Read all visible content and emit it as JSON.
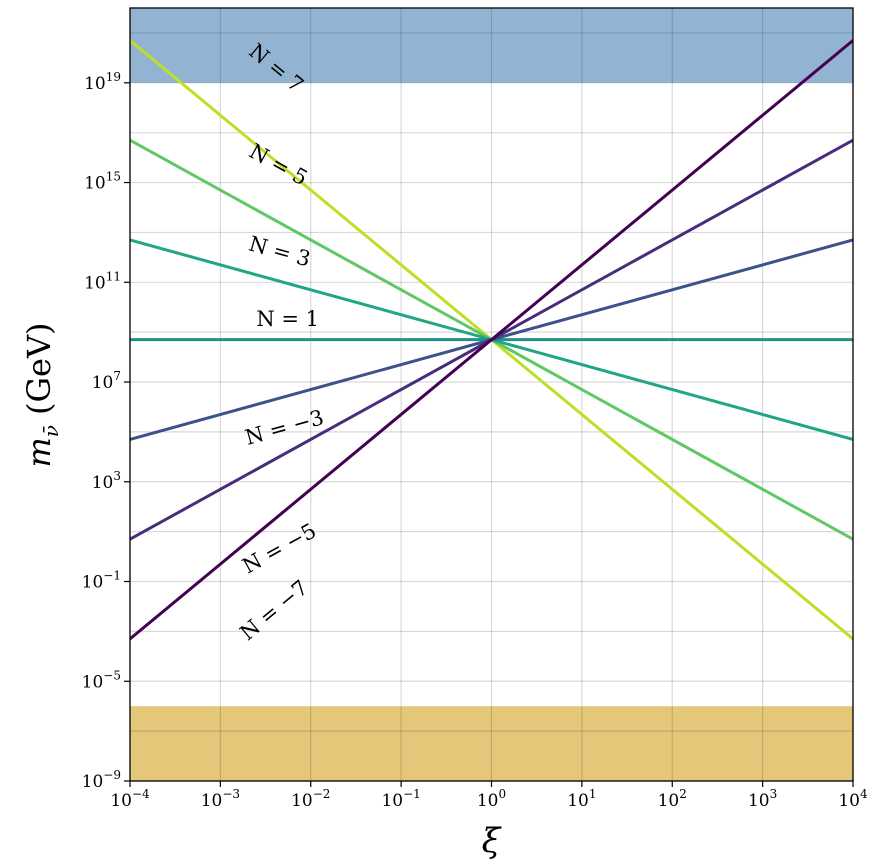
{
  "chart_data": {
    "type": "line",
    "title": "",
    "xlabel": "ξ",
    "ylabel_main": "m",
    "ylabel_sub": "ν̄",
    "ylabel_unit": "(GeV)",
    "x_scale": "log",
    "y_scale": "log",
    "xlim": [
      0.0001,
      10000
    ],
    "ylim": [
      1e-09,
      1e+22
    ],
    "grid": true,
    "x_ticks": [
      {
        "base": "10",
        "exp": "−4",
        "value": 0.0001
      },
      {
        "base": "10",
        "exp": "−3",
        "value": 0.001
      },
      {
        "base": "10",
        "exp": "−2",
        "value": 0.01
      },
      {
        "base": "10",
        "exp": "−1",
        "value": 0.1
      },
      {
        "base": "10",
        "exp": "0",
        "value": 1
      },
      {
        "base": "10",
        "exp": "1",
        "value": 10
      },
      {
        "base": "10",
        "exp": "2",
        "value": 100
      },
      {
        "base": "10",
        "exp": "3",
        "value": 1000
      },
      {
        "base": "10",
        "exp": "4",
        "value": 10000
      }
    ],
    "y_ticks": [
      {
        "base": "10",
        "exp": "−9",
        "value": 1e-09
      },
      {
        "base": "10",
        "exp": "−5",
        "value": 1e-05
      },
      {
        "base": "10",
        "exp": "−1",
        "value": 0.1
      },
      {
        "base": "10",
        "exp": "3",
        "value": 1000
      },
      {
        "base": "10",
        "exp": "7",
        "value": 10000000.0
      },
      {
        "base": "10",
        "exp": "11",
        "value": 100000000000.0
      },
      {
        "base": "10",
        "exp": "15",
        "value": 1000000000000000.0
      },
      {
        "base": "10",
        "exp": "19",
        "value": 1e+19
      }
    ],
    "y_grid_exponents": [
      -9,
      -7,
      -5,
      -3,
      -1,
      1,
      3,
      5,
      7,
      9,
      11,
      13,
      15,
      17,
      19,
      21
    ],
    "bands": [
      {
        "y_from": 1e+19,
        "y_to": 1e+22,
        "color": "#92b4d2"
      },
      {
        "y_from": 1e-09,
        "y_to": 1e-06,
        "color": "#e5c77a"
      }
    ],
    "pivot": {
      "x": 1,
      "y": 500000000.0
    },
    "series": [
      {
        "name": "N = 7",
        "slope": -3,
        "color": "#bddf26",
        "label_x": 0.002,
        "label_y": 1.5e+20
      },
      {
        "name": "N = 5",
        "slope": -2,
        "color": "#5ec962",
        "label_x": 0.002,
        "label_y": 1.2e+16
      },
      {
        "name": "N = 3",
        "slope": -1,
        "color": "#21a685",
        "label_x": 0.002,
        "label_y": 2000000000000.0
      },
      {
        "name": "N = 1",
        "slope": 0,
        "color": "#21918c",
        "label_x": 0.0025,
        "label_y": 1800000000.0
      },
      {
        "name": "N = −3",
        "slope": 1,
        "color": "#3b528b",
        "label_x": 0.002,
        "label_y": 30000.0
      },
      {
        "name": "N = −5",
        "slope": 2,
        "color": "#472d7b",
        "label_x": 0.002,
        "label_y": 0.2
      },
      {
        "name": "N = −7",
        "slope": 3,
        "color": "#440154",
        "label_x": 0.002,
        "label_y": 0.0004
      }
    ]
  }
}
